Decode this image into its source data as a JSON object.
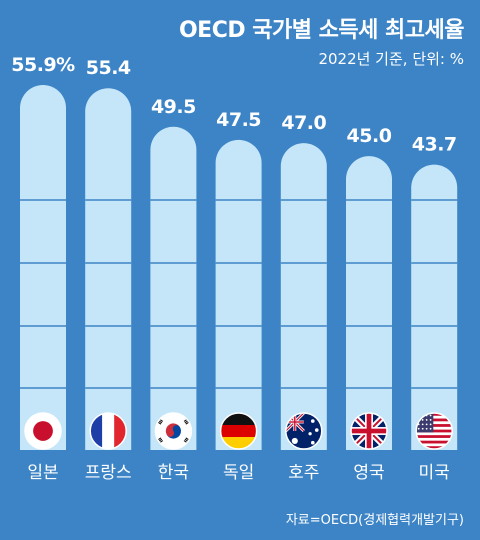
{
  "title": "OECD 국가별 소득세 최고세율",
  "subtitle": "2022년 기준, 단위: %",
  "source": "자료=OECD(경제협력개발기구)",
  "colors": {
    "background": "#3d84c6",
    "bar_fill": "#c4e6f8",
    "bar_lines": "#3d84c6",
    "text": "#ffffff"
  },
  "chart_data": {
    "type": "bar",
    "categories": [
      "일본",
      "프랑스",
      "한국",
      "독일",
      "호주",
      "영국",
      "미국"
    ],
    "values": [
      55.9,
      55.4,
      49.5,
      47.5,
      47.0,
      45.0,
      43.7
    ],
    "value_labels": [
      "55.9%",
      "55.4",
      "49.5",
      "47.5",
      "47.0",
      "45.0",
      "43.7"
    ],
    "flags": [
      "japan-flag-icon",
      "france-flag-icon",
      "korea-flag-icon",
      "germany-flag-icon",
      "australia-flag-icon",
      "uk-flag-icon",
      "usa-flag-icon"
    ],
    "ylim": [
      0,
      60
    ],
    "grid": true,
    "title": "OECD 국가별 소득세 최고세율",
    "xlabel": "",
    "ylabel": ""
  }
}
